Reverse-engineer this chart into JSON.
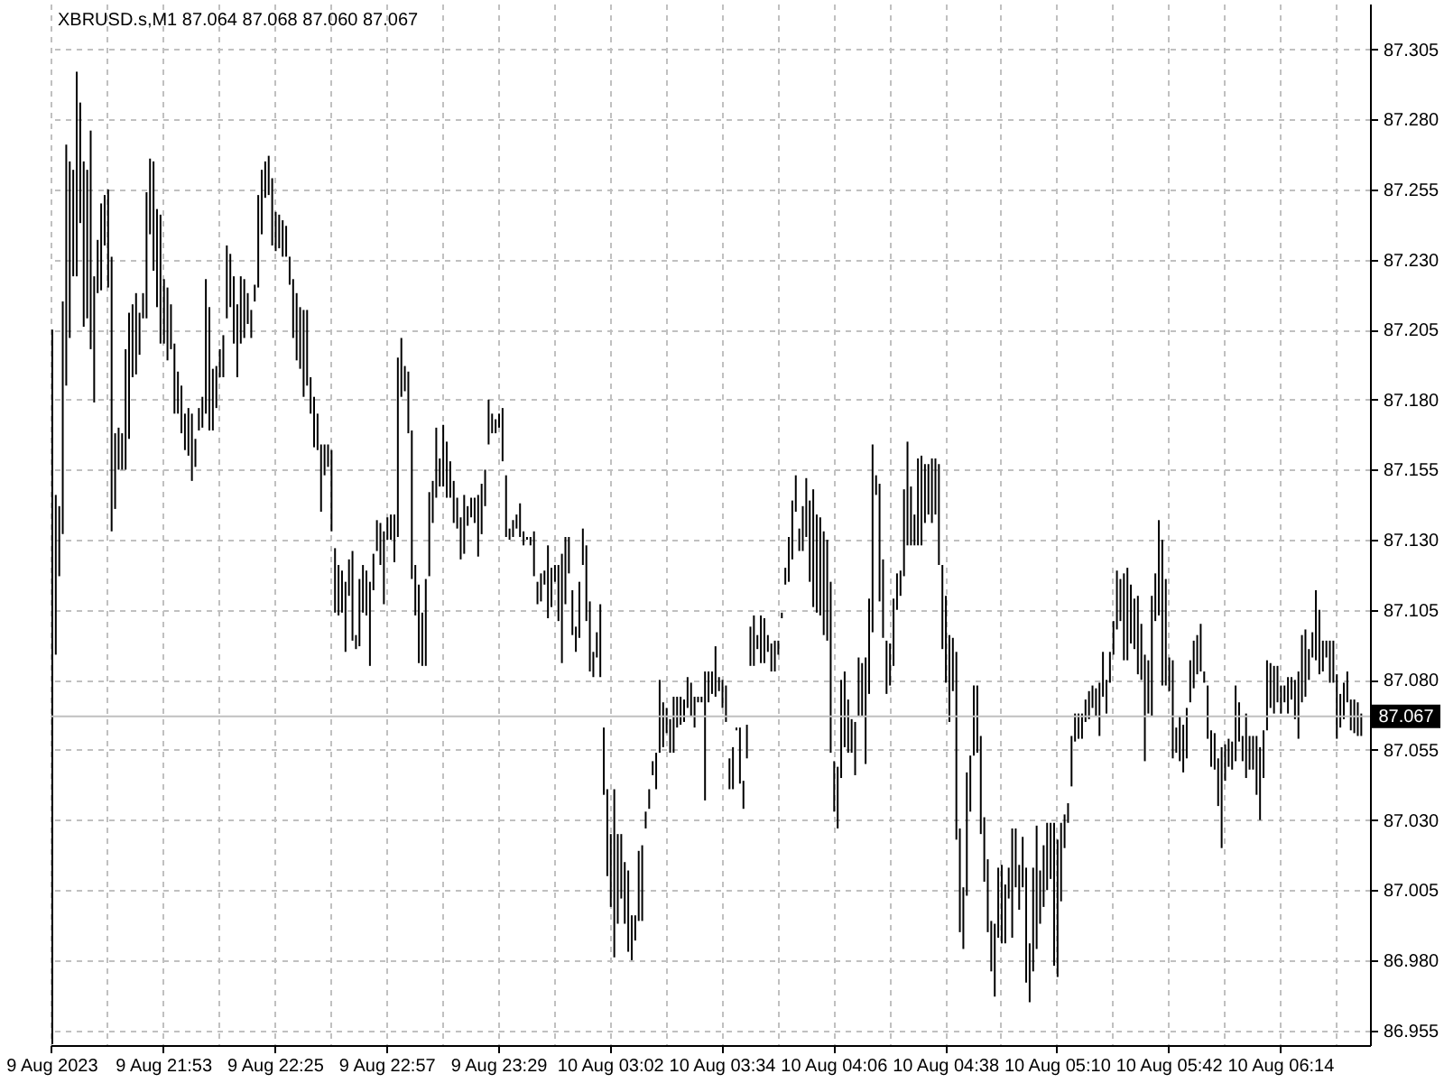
{
  "chart_data": {
    "type": "bar",
    "title": "XBRUSD.s,M1  87.064 87.068 87.060 87.067",
    "color": "#000000",
    "categories": [
      "9 Aug 2023",
      null,
      null,
      null,
      null,
      null,
      null,
      null,
      null,
      null,
      null,
      null,
      null,
      null,
      null,
      null,
      null,
      null,
      null,
      null,
      null,
      null,
      null,
      null,
      null,
      null,
      null,
      null,
      null,
      null,
      null,
      null,
      "9 Aug 21:53",
      null,
      null,
      null,
      null,
      null,
      null,
      null,
      null,
      null,
      null,
      null,
      null,
      null,
      null,
      null,
      null,
      null,
      null,
      null,
      null,
      null,
      null,
      null,
      null,
      null,
      null,
      null,
      null,
      null,
      null,
      null,
      "9 Aug 22:25",
      null,
      null,
      null,
      null,
      null,
      null,
      null,
      null,
      null,
      null,
      null,
      null,
      null,
      null,
      null,
      null,
      null,
      null,
      null,
      null,
      null,
      null,
      null,
      null,
      null,
      null,
      null,
      null,
      null,
      null,
      null,
      "9 Aug 22:57",
      null,
      null,
      null,
      null,
      null,
      null,
      null,
      null,
      null,
      null,
      null,
      null,
      null,
      null,
      null,
      null,
      null,
      null,
      null,
      null,
      null,
      null,
      null,
      null,
      null,
      null,
      null,
      null,
      null,
      null,
      null,
      "9 Aug 23:29",
      null,
      null,
      null,
      null,
      null,
      null,
      null,
      null,
      null,
      null,
      null,
      null,
      null,
      null,
      null,
      null,
      null,
      null,
      null,
      null,
      null,
      null,
      null,
      null,
      null,
      null,
      null,
      null,
      null,
      null,
      null,
      "10 Aug 03:02",
      null,
      null,
      null,
      null,
      null,
      null,
      null,
      null,
      null,
      null,
      null,
      null,
      null,
      null,
      null,
      null,
      null,
      null,
      null,
      null,
      null,
      null,
      null,
      null,
      null,
      null,
      null,
      null,
      null,
      null,
      null,
      "10 Aug 03:34",
      null,
      null,
      null,
      null,
      null,
      null,
      null,
      null,
      null,
      null,
      null,
      null,
      null,
      null,
      null,
      null,
      null,
      null,
      null,
      null,
      null,
      null,
      null,
      null,
      null,
      null,
      null,
      null,
      null,
      null,
      null,
      "10 Aug 04:06",
      null,
      null,
      null,
      null,
      null,
      null,
      null,
      null,
      null,
      null,
      null,
      null,
      null,
      null,
      null,
      null,
      null,
      null,
      null,
      null,
      null,
      null,
      null,
      null,
      null,
      null,
      null,
      null,
      null,
      null,
      null,
      "10 Aug 04:38",
      null,
      null,
      null,
      null,
      null,
      null,
      null,
      null,
      null,
      null,
      null,
      null,
      null,
      null,
      null,
      null,
      null,
      null,
      null,
      null,
      null,
      null,
      null,
      null,
      null,
      null,
      null,
      null,
      null,
      null,
      null,
      "10 Aug 05:10",
      null,
      null,
      null,
      null,
      null,
      null,
      null,
      null,
      null,
      null,
      null,
      null,
      null,
      null,
      null,
      null,
      null,
      null,
      null,
      null,
      null,
      null,
      null,
      null,
      null,
      null,
      null,
      null,
      null,
      null,
      null,
      "10 Aug 05:42",
      null,
      null,
      null,
      null,
      null,
      null,
      null,
      null,
      null,
      null,
      null,
      null,
      null,
      null,
      null,
      null,
      null,
      null,
      null,
      null,
      null,
      null,
      null,
      null,
      null,
      null,
      null,
      null,
      null,
      null,
      null,
      "10 Aug 06:14",
      null,
      null,
      null,
      null,
      null,
      null,
      null,
      null,
      null,
      null,
      null,
      null,
      null,
      null,
      null,
      null,
      null,
      null,
      null,
      null,
      null,
      null,
      null
    ],
    "base": [
      86.95,
      87.089,
      87.117,
      87.132,
      87.185,
      87.202,
      87.224,
      87.224,
      87.243,
      87.206,
      87.209,
      87.198,
      87.179,
      87.218,
      87.219,
      87.235,
      87.22,
      87.133,
      87.141,
      87.155,
      87.155,
      87.155,
      87.166,
      87.188,
      87.189,
      87.196,
      87.209,
      87.209,
      87.239,
      87.226,
      87.213,
      87.2,
      87.2,
      87.194,
      87.198,
      87.175,
      87.175,
      87.168,
      87.162,
      87.16,
      87.151,
      87.156,
      87.169,
      87.17,
      87.175,
      87.169,
      87.169,
      87.177,
      87.188,
      87.188,
      87.209,
      87.213,
      87.2,
      87.188,
      87.2,
      87.202,
      87.207,
      87.202,
      87.215,
      87.22,
      87.239,
      87.252,
      87.253,
      87.235,
      87.233,
      87.234,
      87.231,
      87.231,
      87.221,
      87.202,
      87.194,
      87.191,
      87.181,
      87.185,
      87.175,
      87.163,
      87.162,
      87.14,
      87.153,
      87.156,
      87.133,
      87.104,
      87.103,
      87.104,
      87.09,
      87.11,
      87.094,
      87.091,
      87.092,
      87.104,
      87.103,
      87.085,
      87.112,
      87.126,
      87.121,
      87.107,
      87.13,
      87.13,
      87.122,
      87.131,
      87.181,
      87.183,
      87.168,
      87.116,
      87.103,
      87.086,
      87.085,
      87.085,
      87.117,
      87.136,
      87.145,
      87.149,
      87.149,
      87.145,
      87.145,
      87.136,
      87.134,
      87.123,
      87.125,
      87.135,
      87.138,
      87.136,
      87.124,
      87.132,
      87.142,
      87.164,
      87.168,
      87.168,
      87.17,
      87.158,
      87.131,
      87.13,
      87.131,
      87.134,
      87.131,
      87.128,
      87.13,
      87.128,
      87.117,
      87.107,
      87.108,
      87.114,
      87.102,
      87.106,
      87.115,
      87.101,
      87.086,
      87.107,
      87.118,
      87.096,
      87.09,
      87.095,
      87.121,
      87.101,
      87.083,
      87.081,
      87.088,
      87.081,
      87.039,
      87.01,
      86.999,
      86.981,
      86.993,
      87.002,
      86.993,
      86.983,
      86.98,
      86.987,
      86.994,
      86.994,
      87.027,
      87.034,
      87.046,
      87.041,
      87.054,
      87.056,
      87.061,
      87.054,
      87.054,
      87.063,
      87.064,
      87.065,
      87.07,
      87.067,
      87.063,
      87.072,
      87.072,
      87.037,
      87.072,
      87.075,
      87.074,
      87.076,
      87.07,
      87.065,
      87.041,
      87.041,
      87.062,
      87.043,
      87.034,
      87.052,
      87.085,
      87.085,
      87.091,
      87.086,
      87.086,
      87.09,
      87.083,
      87.083,
      87.089,
      87.102,
      87.114,
      87.115,
      87.123,
      87.14,
      87.126,
      87.126,
      87.131,
      87.115,
      87.106,
      87.104,
      87.103,
      87.096,
      87.094,
      87.054,
      87.033,
      87.027,
      87.045,
      87.056,
      87.054,
      87.054,
      87.046,
      87.067,
      87.067,
      87.05,
      87.075,
      87.097,
      87.146,
      87.108,
      87.095,
      87.075,
      87.078,
      87.085,
      87.105,
      87.11,
      87.117,
      87.128,
      87.128,
      87.128,
      87.128,
      87.128,
      87.136,
      87.139,
      87.136,
      87.139,
      87.121,
      87.091,
      87.079,
      87.065,
      87.076,
      87.023,
      86.99,
      86.984,
      87.003,
      87.033,
      87.053,
      87.054,
      87.025,
      87.008,
      86.99,
      86.976,
      86.967,
      86.988,
      86.986,
      86.986,
      87.002,
      86.988,
      87.006,
      86.998,
      87.006,
      86.972,
      86.965,
      86.976,
      86.984,
      86.993,
      86.999,
      87.005,
      87.009,
      86.978,
      86.974,
      87.001,
      87.02,
      87.029,
      87.042,
      87.058,
      87.059,
      87.059,
      87.065,
      87.066,
      87.07,
      87.067,
      87.06,
      87.074,
      87.068,
      87.079,
      87.089,
      87.098,
      87.101,
      87.087,
      87.087,
      87.093,
      87.091,
      87.082,
      87.08,
      87.051,
      87.068,
      87.067,
      87.101,
      87.103,
      87.078,
      87.078,
      87.076,
      87.052,
      87.054,
      87.051,
      87.047,
      87.052,
      87.072,
      87.077,
      87.082,
      87.083,
      87.079,
      87.059,
      87.049,
      87.048,
      87.035,
      87.02,
      87.044,
      87.049,
      87.048,
      87.051,
      87.058,
      87.051,
      87.045,
      87.048,
      87.048,
      87.039,
      87.03,
      87.045,
      87.062,
      87.07,
      87.068,
      87.072,
      87.068,
      87.072,
      87.068,
      87.073,
      87.066,
      87.059,
      87.072,
      87.074,
      87.08,
      87.088,
      87.087,
      87.082,
      87.083,
      87.088,
      87.079,
      87.079,
      87.059,
      87.063,
      87.066,
      87.072,
      87.062,
      87.061,
      87.06,
      87.06
    ],
    "values": [
      0.255,
      0.057,
      0.025,
      0.083,
      0.086,
      0.063,
      0.038,
      0.073,
      0.043,
      0.059,
      0.053,
      0.078,
      0.045,
      0.019,
      0.031,
      0.018,
      0.035,
      0.098,
      0.027,
      0.015,
      0.013,
      0.043,
      0.045,
      0.026,
      0.029,
      0.015,
      0.009,
      0.045,
      0.027,
      0.039,
      0.035,
      0.046,
      0.023,
      0.026,
      0.016,
      0.025,
      0.015,
      0.017,
      0.013,
      0.017,
      0.024,
      0.01,
      0.008,
      0.011,
      0.048,
      0.044,
      0.022,
      0.015,
      0.01,
      0.015,
      0.026,
      0.019,
      0.024,
      0.026,
      0.024,
      0.021,
      0.011,
      0.01,
      0.006,
      0.033,
      0.023,
      0.013,
      0.014,
      0.024,
      0.014,
      0.012,
      0.013,
      0.011,
      0.01,
      0.021,
      0.024,
      0.022,
      0.031,
      0.027,
      0.013,
      0.018,
      0.013,
      0.024,
      0.011,
      0.008,
      0.029,
      0.023,
      0.018,
      0.015,
      0.025,
      0.013,
      0.032,
      0.005,
      0.024,
      0.017,
      0.016,
      0.03,
      0.013,
      0.011,
      0.015,
      0.026,
      0.008,
      0.009,
      0.017,
      0.064,
      0.021,
      0.009,
      0.022,
      0.053,
      0.018,
      0.028,
      0.019,
      0.031,
      0.03,
      0.015,
      0.025,
      0.01,
      0.022,
      0.02,
      0.013,
      0.015,
      0.011,
      0.015,
      0.021,
      0.007,
      0.007,
      0.009,
      0.022,
      0.018,
      0.013,
      0.016,
      0.007,
      0.005,
      0.005,
      0.019,
      0.022,
      0.004,
      0.006,
      0.005,
      0.012,
      0.005,
      0.001,
      0.003,
      0.016,
      0.008,
      0.01,
      0.005,
      0.026,
      0.014,
      0.006,
      0.02,
      0.039,
      0.024,
      0.013,
      0.016,
      0.009,
      0.02,
      0.013,
      0.027,
      0.025,
      0.009,
      0.009,
      0.026,
      0.024,
      0.031,
      0.026,
      0.06,
      0.032,
      0.023,
      0.022,
      0.029,
      0.016,
      0.009,
      0.025,
      0.027,
      0.006,
      0.007,
      0.005,
      0.013,
      0.026,
      0.016,
      0.009,
      0.012,
      0.02,
      0.011,
      0.01,
      0.008,
      0.011,
      0.012,
      0.011,
      0.002,
      0.002,
      0.046,
      0.011,
      0.008,
      0.018,
      0.005,
      0.01,
      0.013,
      0.011,
      0.015,
      0.001,
      0.02,
      0.01,
      0.012,
      0.014,
      0.018,
      0.005,
      0.017,
      0.016,
      0.006,
      0.01,
      0.011,
      0.005,
      0.002,
      0.006,
      0.016,
      0.021,
      0.013,
      0.008,
      0.016,
      0.021,
      0.029,
      0.042,
      0.035,
      0.035,
      0.037,
      0.036,
      0.061,
      0.018,
      0.022,
      0.035,
      0.027,
      0.019,
      0.012,
      0.019,
      0.021,
      0.019,
      0.038,
      0.034,
      0.067,
      0.007,
      0.042,
      0.028,
      0.019,
      0.015,
      0.024,
      0.013,
      0.009,
      0.031,
      0.037,
      0.021,
      0.011,
      0.031,
      0.032,
      0.021,
      0.018,
      0.023,
      0.02,
      0.036,
      0.03,
      0.031,
      0.031,
      0.019,
      0.067,
      0.037,
      0.022,
      0.044,
      0.02,
      0.025,
      0.024,
      0.035,
      0.023,
      0.026,
      0.018,
      0.026,
      0.025,
      0.028,
      0.021,
      0.011,
      0.039,
      0.021,
      0.016,
      0.018,
      0.041,
      0.021,
      0.037,
      0.044,
      0.019,
      0.022,
      0.024,
      0.02,
      0.051,
      0.049,
      0.028,
      0.012,
      0.007,
      0.018,
      0.01,
      0.009,
      0.009,
      0.008,
      0.01,
      0.008,
      0.01,
      0.019,
      0.016,
      0.012,
      0.011,
      0.012,
      0.021,
      0.015,
      0.031,
      0.033,
      0.021,
      0.018,
      0.028,
      0.02,
      0.038,
      0.019,
      0.043,
      0.017,
      0.034,
      0.052,
      0.038,
      0.012,
      0.035,
      0.009,
      0.016,
      0.017,
      0.018,
      0.015,
      0.017,
      0.014,
      0.017,
      0.004,
      0.019,
      0.013,
      0.013,
      0.017,
      0.036,
      0.013,
      0.01,
      0.01,
      0.027,
      0.014,
      0.009,
      0.023,
      0.012,
      0.012,
      0.021,
      0.026,
      0.017,
      0.025,
      0.016,
      0.017,
      0.013,
      0.01,
      0.006,
      0.013,
      0.008,
      0.014,
      0.024,
      0.024,
      0.024,
      0.011,
      0.009,
      0.025,
      0.023,
      0.011,
      0.006,
      0.015,
      0.015,
      0.023,
      0.012,
      0.013,
      0.011,
      0.011,
      0.012,
      0.012,
      0.008
    ],
    "ylim": [
      86.9497,
      87.3213
    ],
    "yticks": [
      {
        "value": 86.955,
        "label": "86.955"
      },
      {
        "value": 86.98,
        "label": "86.980"
      },
      {
        "value": 87.005,
        "label": "87.005"
      },
      {
        "value": 87.03,
        "label": "87.030"
      },
      {
        "value": 87.055,
        "label": "87.055"
      },
      {
        "value": 87.08,
        "label": "87.080"
      },
      {
        "value": 87.105,
        "label": "87.105"
      },
      {
        "value": 87.13,
        "label": "87.130"
      },
      {
        "value": 87.155,
        "label": "87.155"
      },
      {
        "value": 87.18,
        "label": "87.180"
      },
      {
        "value": 87.205,
        "label": "87.205"
      },
      {
        "value": 87.23,
        "label": "87.230"
      },
      {
        "value": 87.255,
        "label": "87.255"
      },
      {
        "value": 87.28,
        "label": "87.280"
      },
      {
        "value": 87.305,
        "label": "87.305"
      }
    ],
    "grid": true,
    "ref_lines": [
      {
        "axis": "y",
        "value": 87.067,
        "label": "87.067",
        "color": "#c0c0c0"
      }
    ]
  }
}
